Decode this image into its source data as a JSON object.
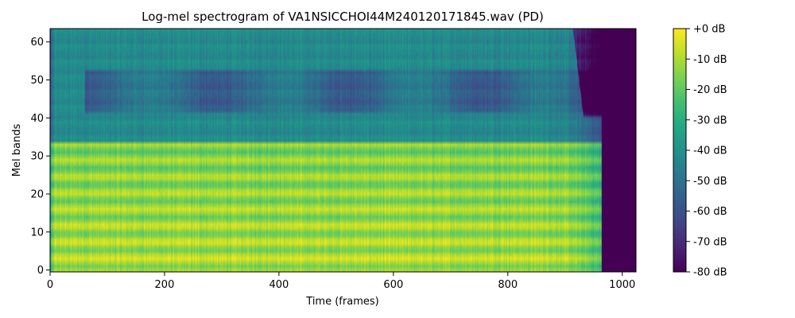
{
  "chart_data": {
    "type": "heatmap",
    "title": "Log-mel spectrogram of VA1NSICCHOI44M240120171845.wav (PD)",
    "xlabel": "Time (frames)",
    "ylabel": "Mel bands",
    "xlim": [
      0,
      1024
    ],
    "ylim": [
      -0.5,
      63.5
    ],
    "x_ticks": [
      0,
      200,
      400,
      600,
      800,
      1000
    ],
    "x_tick_labels": [
      "0",
      "200",
      "400",
      "600",
      "800",
      "1000"
    ],
    "y_ticks": [
      0,
      10,
      20,
      30,
      40,
      50,
      60
    ],
    "y_tick_labels": [
      "0",
      "10",
      "20",
      "30",
      "40",
      "50",
      "60"
    ],
    "n_frames": 1024,
    "n_mels": 64,
    "colormap": "viridis",
    "colorbar": {
      "range_db": [
        -80,
        0
      ],
      "ticks": [
        0,
        -10,
        -20,
        -30,
        -40,
        -50,
        -60,
        -70,
        -80
      ],
      "tick_labels": [
        "+0 dB",
        "-10 dB",
        "-20 dB",
        "-30 dB",
        "-40 dB",
        "-50 dB",
        "-60 dB",
        "-70 dB",
        "-80 dB"
      ]
    },
    "approx_structure": {
      "voiced_end_frame": 962,
      "silence_level_db": -80,
      "low_band_level_db": -6,
      "high_band_level_db": -42,
      "harmonic_region_top_band": 34,
      "harmonic_period_bands": 4.3
    }
  }
}
